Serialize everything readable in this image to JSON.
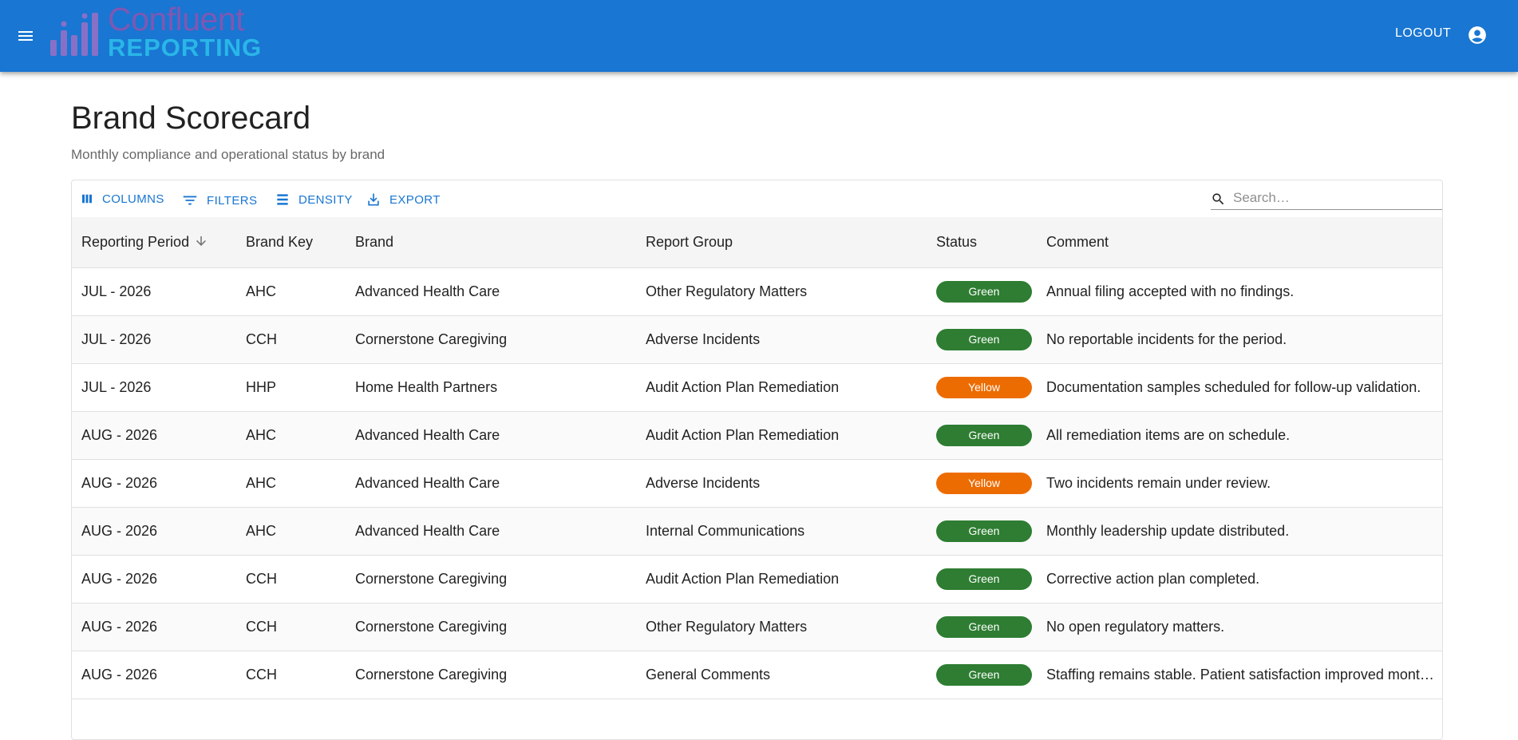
{
  "appbar": {
    "logo_line1": "Confluent",
    "logo_line2": "REPORTING",
    "logout_label": "LOGOUT",
    "color": "#1976d2"
  },
  "page": {
    "title": "Brand Scorecard",
    "subtitle": "Monthly compliance and operational status by brand"
  },
  "toolbar": {
    "columns_label": "COLUMNS",
    "filters_label": "FILTERS",
    "density_label": "DENSITY",
    "export_label": "EXPORT",
    "search_placeholder": "Search…"
  },
  "table": {
    "headers": [
      "Reporting Period",
      "Brand Key",
      "Brand",
      "Report Group",
      "Status",
      "Comment"
    ],
    "sort": {
      "column": "Reporting Period",
      "direction": "descending-arrow"
    },
    "status_colors": {
      "Green": "#2e7d32",
      "Yellow": "#ed6c02"
    },
    "rows": [
      {
        "period": "JUL - 2026",
        "key": "AHC",
        "brand": "Advanced Health Care",
        "group": "Other Regulatory Matters",
        "status": "Green",
        "comment": "Annual filing accepted with no findings."
      },
      {
        "period": "JUL - 2026",
        "key": "CCH",
        "brand": "Cornerstone Caregiving",
        "group": "Adverse Incidents",
        "status": "Green",
        "comment": "No reportable incidents for the period."
      },
      {
        "period": "JUL - 2026",
        "key": "HHP",
        "brand": "Home Health Partners",
        "group": "Audit Action Plan Remediation",
        "status": "Yellow",
        "comment": "Documentation samples scheduled for follow-up validation."
      },
      {
        "period": "AUG - 2026",
        "key": "AHC",
        "brand": "Advanced Health Care",
        "group": "Audit Action Plan Remediation",
        "status": "Green",
        "comment": "All remediation items are on schedule."
      },
      {
        "period": "AUG - 2026",
        "key": "AHC",
        "brand": "Advanced Health Care",
        "group": "Adverse Incidents",
        "status": "Yellow",
        "comment": "Two incidents remain under review."
      },
      {
        "period": "AUG - 2026",
        "key": "AHC",
        "brand": "Advanced Health Care",
        "group": "Internal Communications",
        "status": "Green",
        "comment": "Monthly leadership update distributed."
      },
      {
        "period": "AUG - 2026",
        "key": "CCH",
        "brand": "Cornerstone Caregiving",
        "group": "Audit Action Plan Remediation",
        "status": "Green",
        "comment": "Corrective action plan completed."
      },
      {
        "period": "AUG - 2026",
        "key": "CCH",
        "brand": "Cornerstone Caregiving",
        "group": "Other Regulatory Matters",
        "status": "Green",
        "comment": "No open regulatory matters."
      },
      {
        "period": "AUG - 2026",
        "key": "CCH",
        "brand": "Cornerstone Caregiving",
        "group": "General Comments",
        "status": "Green",
        "comment": "Staffing remains stable. Patient satisfaction improved month over month."
      }
    ]
  }
}
